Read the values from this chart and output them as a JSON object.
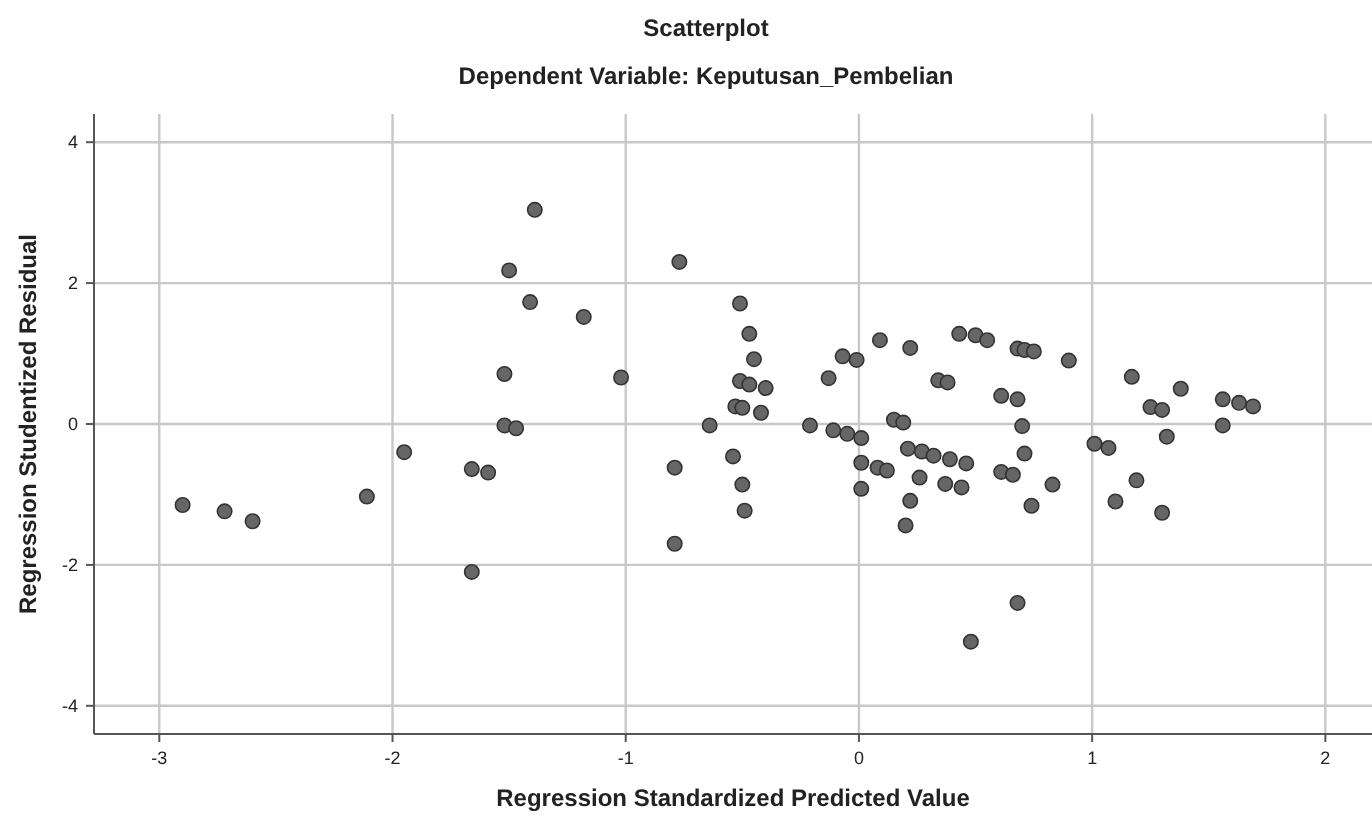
{
  "chart_data": {
    "type": "scatter",
    "title": "Scatterplot",
    "subtitle": "Dependent Variable: Keputusan_Pembelian",
    "xlabel": "Regression Standardized Predicted Value",
    "ylabel": "Regression Studentized Residual",
    "x": [
      -2.9,
      -2.72,
      -2.6,
      -2.11,
      -1.95,
      -1.66,
      -1.59,
      -1.66,
      -1.52,
      -1.47,
      -1.52,
      -1.5,
      -1.41,
      -1.39,
      -1.18,
      -1.02,
      -0.77,
      -0.79,
      -0.79,
      -0.64,
      -0.54,
      -0.5,
      -0.49,
      -0.51,
      -0.47,
      -0.45,
      -0.51,
      -0.47,
      -0.4,
      -0.53,
      -0.5,
      -0.42,
      -0.21,
      -0.11,
      -0.05,
      0.01,
      -0.13,
      -0.07,
      -0.01,
      0.09,
      0.22,
      0.01,
      0.01,
      0.08,
      0.12,
      0.15,
      0.19,
      0.21,
      0.27,
      0.32,
      0.39,
      0.46,
      0.26,
      0.37,
      0.44,
      0.22,
      0.2,
      0.34,
      0.38,
      0.43,
      0.5,
      0.55,
      0.48,
      0.68,
      0.71,
      0.75,
      0.9,
      0.61,
      0.68,
      0.7,
      0.71,
      0.61,
      0.66,
      0.83,
      0.74,
      0.68,
      1.01,
      1.07,
      1.17,
      1.19,
      1.1,
      1.25,
      1.3,
      1.32,
      1.3,
      1.38,
      1.56,
      1.56,
      1.63,
      1.69
    ],
    "values": [
      -1.15,
      -1.24,
      -1.38,
      -1.03,
      -0.4,
      -0.64,
      -0.69,
      -2.1,
      -0.02,
      -0.06,
      0.71,
      2.18,
      1.73,
      3.04,
      1.52,
      0.66,
      2.3,
      -0.62,
      -1.7,
      -0.02,
      -0.46,
      -0.86,
      -1.23,
      1.71,
      1.28,
      0.92,
      0.61,
      0.56,
      0.51,
      0.25,
      0.23,
      0.16,
      -0.02,
      -0.09,
      -0.14,
      -0.2,
      0.65,
      0.96,
      0.91,
      1.19,
      1.08,
      -0.55,
      -0.92,
      -0.62,
      -0.66,
      0.06,
      0.02,
      -0.35,
      -0.39,
      -0.45,
      -0.5,
      -0.56,
      -0.76,
      -0.85,
      -0.9,
      -1.09,
      -1.44,
      0.62,
      0.59,
      1.28,
      1.26,
      1.19,
      -3.09,
      1.07,
      1.05,
      1.03,
      0.9,
      0.4,
      0.35,
      -0.03,
      -0.42,
      -0.68,
      -0.72,
      -0.86,
      -1.16,
      -2.54,
      -0.28,
      -0.34,
      0.67,
      -0.8,
      -1.1,
      0.24,
      0.2,
      -0.18,
      -1.26,
      0.5,
      0.35,
      -0.02,
      0.3,
      0.25
    ],
    "color": "#666666",
    "marker": "circle",
    "grid": true,
    "xlim": [
      -3.28,
      2.2
    ],
    "xticks": [
      -3,
      -2,
      -1,
      0,
      1,
      2
    ],
    "ylim": [
      -4.4,
      4.4
    ],
    "yticks": [
      -4,
      -2,
      0,
      2,
      4
    ]
  }
}
